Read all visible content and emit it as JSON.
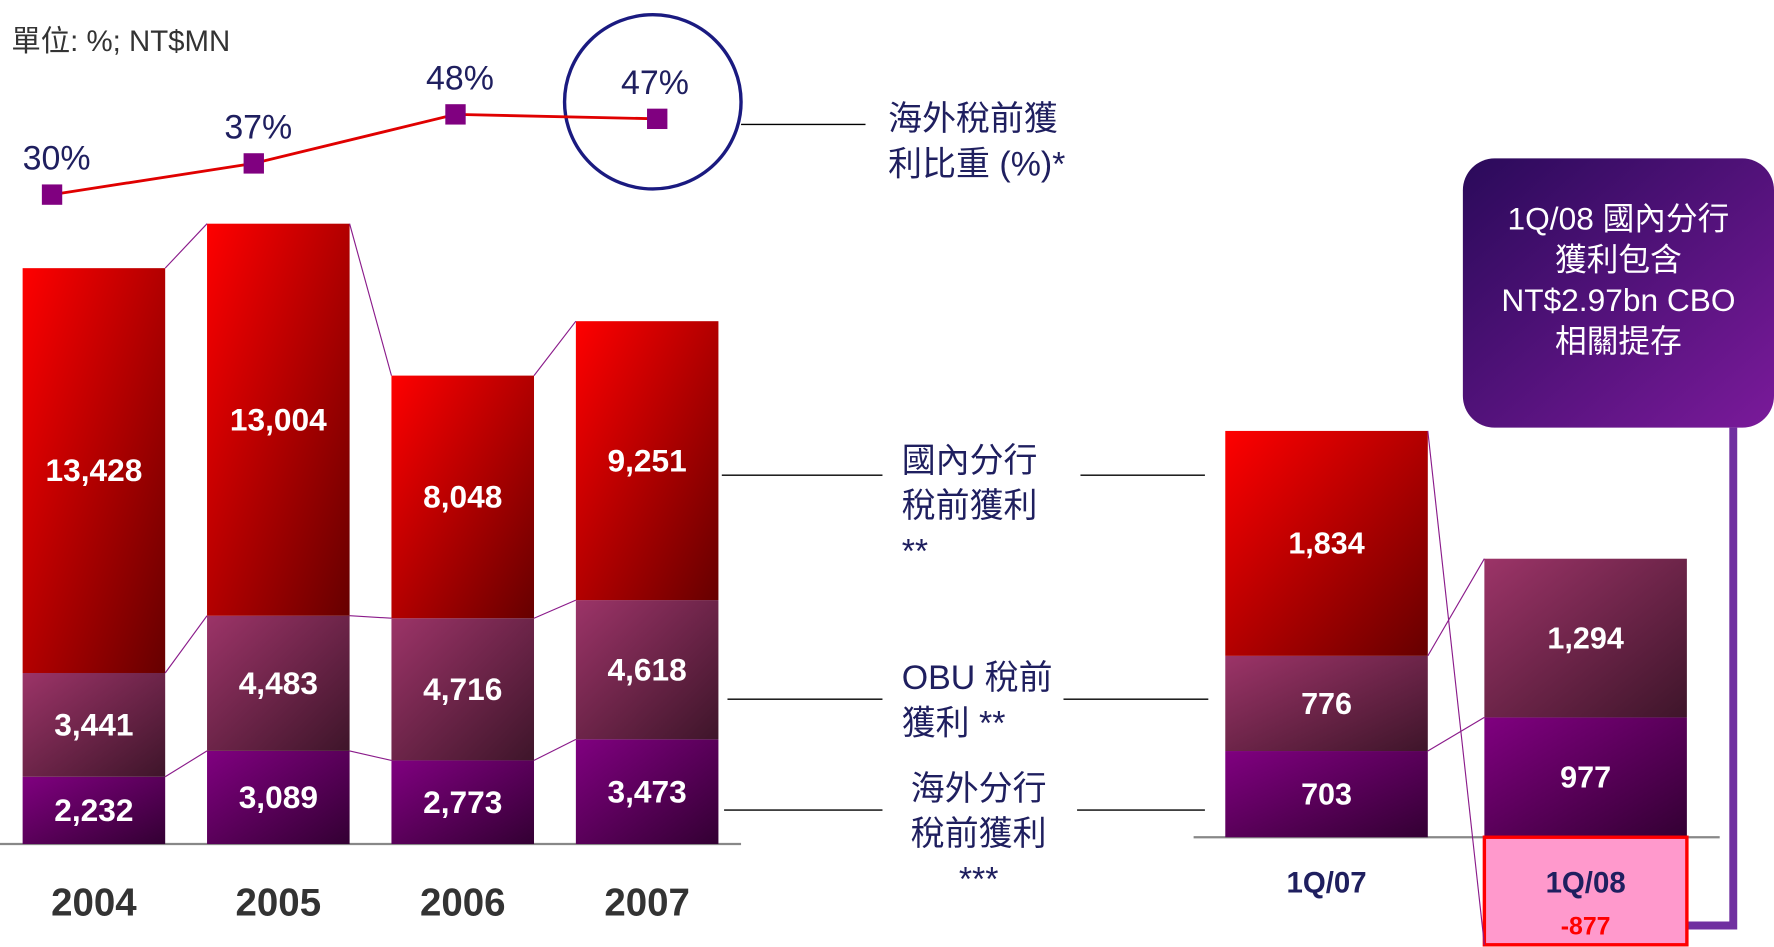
{
  "unit": "單位: %; NT$MN",
  "note_box": [
    "1Q/08 國內分行",
    "獲利包含",
    "NT$2.97bn CBO",
    "相關提存"
  ],
  "chart_data": [
    {
      "type": "bar",
      "stacked": true,
      "categories": [
        "2004",
        "2005",
        "2006",
        "2007"
      ],
      "ylim": [
        0,
        21000
      ],
      "series": [
        {
          "name": "海外分行稅前獲利 ***",
          "color": "#800080",
          "values": [
            2232,
            3089,
            2773,
            3473
          ],
          "value_labels": [
            "2,232",
            "3,089",
            "2,773",
            "3,473"
          ]
        },
        {
          "name": "OBU 稅前獲利 **",
          "color": "#9c3468",
          "values": [
            3441,
            4483,
            4716,
            4618
          ],
          "value_labels": [
            "3,441",
            "4,483",
            "4,716",
            "4,618"
          ]
        },
        {
          "name": "國內分行稅前獲利 **",
          "color": "#ff0000",
          "values": [
            13428,
            13004,
            8048,
            9251
          ],
          "value_labels": [
            "13,428",
            "13,004",
            "8,048",
            "9,251"
          ]
        }
      ]
    },
    {
      "type": "line",
      "categories": [
        "2004",
        "2005",
        "2006",
        "2007"
      ],
      "ylim": [
        20,
        50
      ],
      "series": [
        {
          "name": "海外稅前獲利比重 (%)*",
          "color": "#e00000",
          "marker_color": "#800080",
          "values": [
            30,
            37,
            48,
            47
          ],
          "value_labels": [
            "30%",
            "37%",
            "48%",
            "47%"
          ]
        }
      ]
    },
    {
      "type": "bar",
      "stacked": true,
      "categories": [
        "1Q/07",
        "1Q/08"
      ],
      "ylim": [
        -1000,
        3500
      ],
      "series": [
        {
          "color": "#800080",
          "values": [
            703,
            977
          ],
          "value_labels": [
            "703",
            "977"
          ]
        },
        {
          "color": "#9c3468",
          "values": [
            776,
            1294
          ],
          "value_labels": [
            "776",
            "1,294"
          ]
        },
        {
          "color": "#ff0000",
          "negative_fill": "#ff99cc",
          "values": [
            1834,
            -877
          ],
          "value_labels": [
            "1,834",
            "-877"
          ]
        }
      ]
    }
  ]
}
